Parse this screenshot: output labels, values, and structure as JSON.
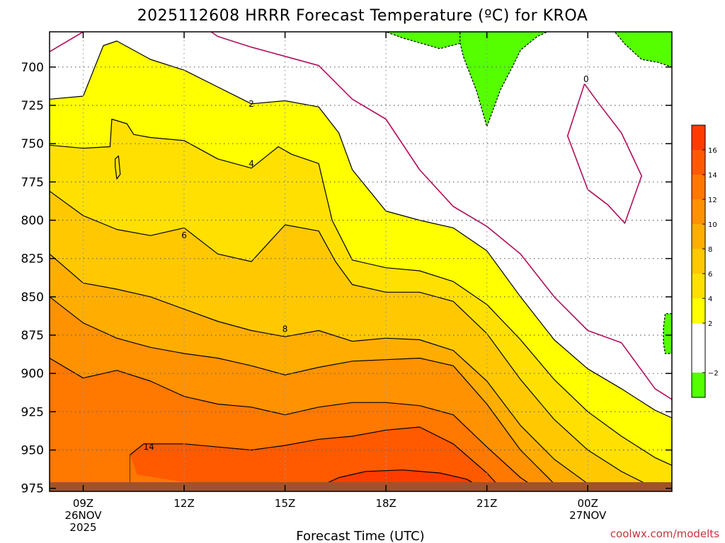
{
  "title": "2025112608 HRRR Forecast Temperature (ºC) for KROA",
  "credit": "coolwx.com/modelts",
  "colors": {
    "red_band": "#ff3c00",
    "ground": "#a0522d",
    "contour": "#000000",
    "zero_line": "#b0105a",
    "minus2_fill": "#55ff00",
    "frame": "#000000"
  },
  "chart_data": {
    "type": "heatmap",
    "title": "2025112608 HRRR Forecast Temperature (ºC) for KROA",
    "xlabel": "Forecast Time (UTC)",
    "ylabel": "",
    "x_unit": "forecast hour from 2025-11-26 08Z",
    "xlim": [
      8,
      26.5
    ],
    "ylim": [
      977,
      677
    ],
    "y_reversed": true,
    "x_ticks": [
      {
        "x": 9,
        "label": "09Z",
        "sub1": "26NOV",
        "sub2": "2025"
      },
      {
        "x": 12,
        "label": "12Z",
        "sub1": "",
        "sub2": ""
      },
      {
        "x": 15,
        "label": "15Z",
        "sub1": "",
        "sub2": ""
      },
      {
        "x": 18,
        "label": "18Z",
        "sub1": "",
        "sub2": ""
      },
      {
        "x": 21,
        "label": "21Z",
        "sub1": "",
        "sub2": ""
      },
      {
        "x": 24,
        "label": "00Z",
        "sub1": "27NOV",
        "sub2": ""
      }
    ],
    "y_ticks": [
      {
        "y": 700,
        "label": "700"
      },
      {
        "y": 725,
        "label": "725"
      },
      {
        "y": 750,
        "label": "750"
      },
      {
        "y": 775,
        "label": "775"
      },
      {
        "y": 800,
        "label": "800"
      },
      {
        "y": 825,
        "label": "825"
      },
      {
        "y": 850,
        "label": "850"
      },
      {
        "y": 875,
        "label": "875"
      },
      {
        "y": 900,
        "label": "900"
      },
      {
        "y": 925,
        "label": "925"
      },
      {
        "y": 950,
        "label": "950"
      },
      {
        "y": 975,
        "label": "975"
      }
    ],
    "grid": true,
    "ground_level": 971,
    "colorbar": {
      "placement": "right",
      "bands": [
        {
          "lo": -4,
          "hi": -2,
          "color": "#55ff00"
        },
        {
          "lo": -2,
          "hi": 2,
          "color": "#ffffff"
        },
        {
          "lo": 2,
          "hi": 4,
          "color": "#ffff00"
        },
        {
          "lo": 4,
          "hi": 6,
          "color": "#ffe000"
        },
        {
          "lo": 6,
          "hi": 8,
          "color": "#ffc800"
        },
        {
          "lo": 8,
          "hi": 10,
          "color": "#ffae00"
        },
        {
          "lo": 10,
          "hi": 12,
          "color": "#ff9200"
        },
        {
          "lo": 12,
          "hi": 14,
          "color": "#ff7800"
        },
        {
          "lo": 14,
          "hi": 16,
          "color": "#ff5a00"
        },
        {
          "lo": 16,
          "hi": 18,
          "color": "#ff3c00"
        }
      ],
      "tick_labels": [
        {
          "v": -2,
          "label": "−2"
        },
        {
          "v": 2,
          "label": "2"
        },
        {
          "v": 4,
          "label": "4"
        },
        {
          "v": 6,
          "label": "6"
        },
        {
          "v": 8,
          "label": "8"
        },
        {
          "v": 10,
          "label": "10"
        },
        {
          "v": 12,
          "label": "12"
        },
        {
          "v": 14,
          "label": "14"
        },
        {
          "v": 16,
          "label": "16"
        }
      ]
    },
    "contour_labels": [
      {
        "text": "0",
        "x": 23.95,
        "y": 708
      },
      {
        "text": "2",
        "x": 14.0,
        "y": 724
      },
      {
        "text": "4",
        "x": 14.0,
        "y": 763
      },
      {
        "text": "6",
        "x": 12.0,
        "y": 810
      },
      {
        "text": "8",
        "x": 15.0,
        "y": 871
      },
      {
        "text": "14",
        "x": 10.95,
        "y": 948
      }
    ],
    "fills": [
      {
        "color": "#ffff00",
        "outline": true,
        "points": [
          [
            8,
            721
          ],
          [
            9,
            719
          ],
          [
            9.6,
            686
          ],
          [
            10,
            683
          ],
          [
            11,
            695
          ],
          [
            12,
            702
          ],
          [
            13,
            713
          ],
          [
            14,
            724
          ],
          [
            15,
            722
          ],
          [
            16,
            726
          ],
          [
            16.6,
            743
          ],
          [
            17,
            767
          ],
          [
            18,
            794
          ],
          [
            19,
            800
          ],
          [
            20,
            805
          ],
          [
            21,
            820
          ],
          [
            22,
            850
          ],
          [
            23,
            878
          ],
          [
            24,
            897
          ],
          [
            25,
            910
          ],
          [
            26,
            924
          ],
          [
            26.5,
            929
          ],
          [
            26.5,
            977
          ],
          [
            8,
            977
          ]
        ]
      },
      {
        "color": "#ffe000",
        "outline": true,
        "points": [
          [
            8,
            751
          ],
          [
            9,
            753
          ],
          [
            9.8,
            752
          ],
          [
            9.85,
            734
          ],
          [
            10.3,
            737
          ],
          [
            10.5,
            744
          ],
          [
            11,
            746
          ],
          [
            12,
            748
          ],
          [
            13,
            760
          ],
          [
            14,
            766
          ],
          [
            14.8,
            752
          ],
          [
            15.2,
            757
          ],
          [
            16,
            763
          ],
          [
            16.4,
            800
          ],
          [
            17,
            826
          ],
          [
            18,
            831
          ],
          [
            19,
            833
          ],
          [
            20,
            840
          ],
          [
            21,
            855
          ],
          [
            22,
            878
          ],
          [
            23,
            904
          ],
          [
            24,
            925
          ],
          [
            25,
            941
          ],
          [
            26,
            955
          ],
          [
            26.5,
            960
          ],
          [
            26.5,
            977
          ],
          [
            8,
            977
          ]
        ]
      },
      {
        "color": "#ffc800",
        "outline": true,
        "points": [
          [
            8,
            781
          ],
          [
            9,
            797
          ],
          [
            10,
            806
          ],
          [
            11,
            810
          ],
          [
            12,
            805
          ],
          [
            13,
            822
          ],
          [
            14,
            827
          ],
          [
            15,
            803
          ],
          [
            16,
            807
          ],
          [
            16.5,
            827
          ],
          [
            17,
            842
          ],
          [
            18,
            847
          ],
          [
            19,
            847
          ],
          [
            20,
            853
          ],
          [
            21,
            874
          ],
          [
            22,
            904
          ],
          [
            23,
            930
          ],
          [
            24,
            950
          ],
          [
            25,
            964
          ],
          [
            26,
            975
          ],
          [
            26.5,
            977
          ],
          [
            8,
            977
          ]
        ]
      },
      {
        "color": "#ffae00",
        "outline": true,
        "points": [
          [
            8,
            822
          ],
          [
            9,
            841
          ],
          [
            10,
            845
          ],
          [
            11,
            850
          ],
          [
            12,
            858
          ],
          [
            13,
            866
          ],
          [
            14,
            872
          ],
          [
            15,
            876
          ],
          [
            16,
            872
          ],
          [
            17,
            879
          ],
          [
            18,
            877
          ],
          [
            19,
            878
          ],
          [
            20,
            885
          ],
          [
            21,
            905
          ],
          [
            22,
            934
          ],
          [
            23,
            956
          ],
          [
            24,
            972
          ],
          [
            24.5,
            977
          ],
          [
            8,
            977
          ]
        ]
      },
      {
        "color": "#ff9200",
        "outline": true,
        "points": [
          [
            8,
            850
          ],
          [
            9,
            867
          ],
          [
            10,
            877
          ],
          [
            11,
            883
          ],
          [
            12,
            887
          ],
          [
            13,
            890
          ],
          [
            14,
            895
          ],
          [
            15,
            901
          ],
          [
            16,
            896
          ],
          [
            17,
            892
          ],
          [
            18,
            891
          ],
          [
            19,
            890
          ],
          [
            20,
            895
          ],
          [
            21,
            920
          ],
          [
            22,
            950
          ],
          [
            23,
            972
          ],
          [
            23.6,
            977
          ],
          [
            8,
            977
          ]
        ]
      },
      {
        "color": "#ff7800",
        "outline": true,
        "points": [
          [
            8,
            890
          ],
          [
            9,
            903
          ],
          [
            10,
            898
          ],
          [
            11,
            905
          ],
          [
            12,
            915
          ],
          [
            13,
            920
          ],
          [
            14,
            922
          ],
          [
            15,
            927
          ],
          [
            16,
            922
          ],
          [
            17,
            919
          ],
          [
            18,
            919
          ],
          [
            19,
            921
          ],
          [
            20,
            927
          ],
          [
            21,
            948
          ],
          [
            22,
            968
          ],
          [
            22.6,
            977
          ],
          [
            8,
            977
          ]
        ]
      },
      {
        "color": "#ff5a00",
        "outline": true,
        "points": [
          [
            10.4,
            953
          ],
          [
            10.8,
            946
          ],
          [
            12,
            946
          ],
          [
            13,
            948
          ],
          [
            14,
            950
          ],
          [
            15,
            947
          ],
          [
            16,
            943
          ],
          [
            17,
            941
          ],
          [
            18,
            937
          ],
          [
            19,
            935
          ],
          [
            20,
            946
          ],
          [
            21,
            965
          ],
          [
            21.5,
            977
          ],
          [
            10.4,
            977
          ]
        ]
      },
      {
        "color": "#ff3c00",
        "outline": true,
        "points": [
          [
            16,
            974
          ],
          [
            16.6,
            968
          ],
          [
            17.4,
            964
          ],
          [
            18.5,
            963
          ],
          [
            19.6,
            965
          ],
          [
            20.4,
            969
          ],
          [
            21,
            977
          ],
          [
            16,
            977
          ]
        ]
      },
      {
        "color": "#ff7800",
        "outline": false,
        "points": [
          [
            8,
            977
          ],
          [
            10.4,
            977
          ],
          [
            10.4,
            953
          ],
          [
            10.6,
            966
          ],
          [
            12,
            971
          ],
          [
            13,
            973
          ],
          [
            14,
            975
          ],
          [
            14.5,
            977
          ],
          [
            15,
            977
          ]
        ]
      },
      {
        "color": "#55ff00",
        "outline": true,
        "dashed": true,
        "points": [
          [
            18,
            677
          ],
          [
            20.2,
            677
          ],
          [
            20.3,
            684
          ],
          [
            19.6,
            688
          ],
          [
            18.5,
            681
          ],
          [
            18,
            677
          ]
        ]
      },
      {
        "color": "#55ff00",
        "outline": true,
        "dashed": true,
        "points": [
          [
            20.2,
            677
          ],
          [
            22.8,
            677
          ],
          [
            22.5,
            680
          ],
          [
            22,
            689
          ],
          [
            21.8,
            698
          ],
          [
            21.4,
            715
          ],
          [
            21.0,
            739
          ],
          [
            20.7,
            716
          ],
          [
            20.3,
            693
          ],
          [
            20.2,
            684
          ]
        ]
      },
      {
        "color": "#55ff00",
        "outline": true,
        "dashed": true,
        "points": [
          [
            24.8,
            677
          ],
          [
            26.5,
            677
          ],
          [
            26.5,
            700
          ],
          [
            26.1,
            697
          ],
          [
            25.6,
            695
          ],
          [
            25.1,
            685
          ]
        ]
      },
      {
        "color": "#55ff00",
        "outline": true,
        "dashed": true,
        "points": [
          [
            26.5,
            861
          ],
          [
            26.3,
            861
          ],
          [
            26.25,
            870
          ],
          [
            26.25,
            880
          ],
          [
            26.3,
            887
          ],
          [
            26.5,
            887
          ]
        ]
      },
      {
        "color": "#ffe000",
        "outline": true,
        "points": [
          [
            9.95,
            760
          ],
          [
            10.05,
            758
          ],
          [
            10.1,
            770
          ],
          [
            10.0,
            773
          ],
          [
            9.95,
            765
          ]
        ]
      }
    ],
    "zero_contours": [
      [
        [
          8,
          690
        ],
        [
          9,
          677
        ]
      ],
      [
        [
          12.8,
          677
        ],
        [
          13,
          680
        ],
        [
          14,
          687
        ],
        [
          15,
          693
        ],
        [
          16,
          699
        ],
        [
          17,
          721
        ],
        [
          18,
          734
        ],
        [
          19,
          767
        ],
        [
          20,
          791
        ],
        [
          21,
          804
        ],
        [
          22,
          822
        ],
        [
          23,
          850
        ],
        [
          24,
          872
        ],
        [
          25,
          880
        ],
        [
          26,
          910
        ],
        [
          26.5,
          917
        ]
      ],
      [
        [
          23.9,
          711
        ],
        [
          24.3,
          723
        ],
        [
          25,
          743
        ],
        [
          25.6,
          771
        ],
        [
          25.1,
          802
        ],
        [
          24.6,
          790
        ],
        [
          24.0,
          780
        ],
        [
          23.4,
          745
        ],
        [
          23.5,
          738
        ],
        [
          23.9,
          711
        ]
      ]
    ]
  }
}
